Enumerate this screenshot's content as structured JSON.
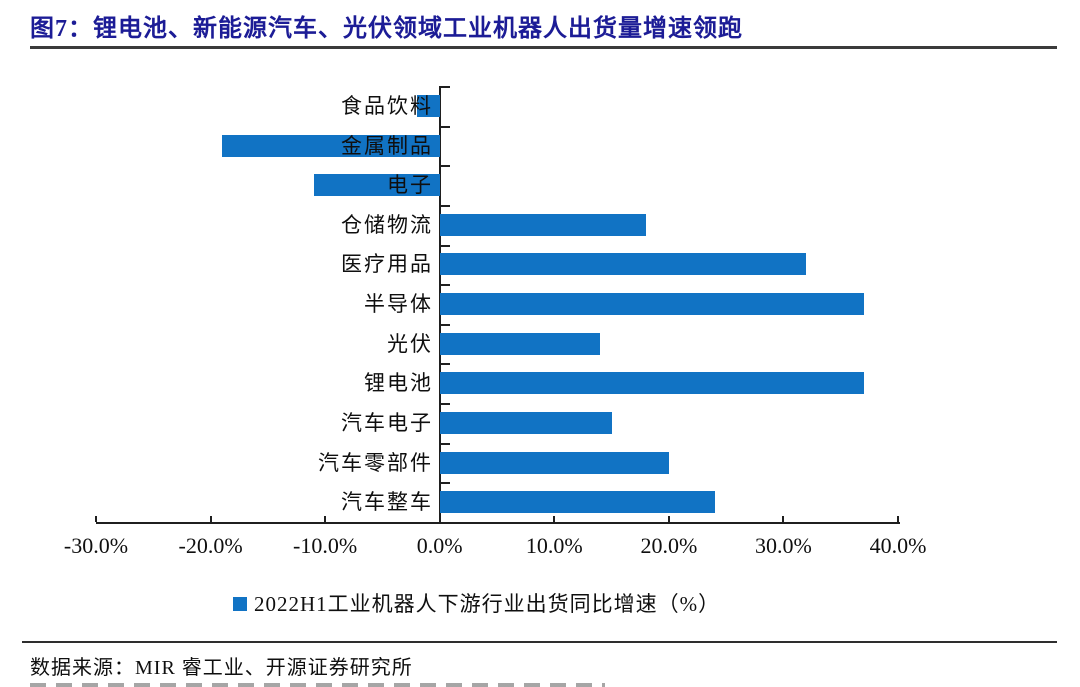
{
  "figure": {
    "title": "图7：锂电池、新能源汽车、光伏领域工业机器人出货量增速领跑",
    "source": "数据来源：MIR 睿工业、开源证券研究所"
  },
  "legend": {
    "label": "2022H1工业机器人下游行业出货同比增速（%）",
    "marker_color": "#1173c4"
  },
  "colors": {
    "title": "#1c1c96",
    "bar": "#1173c4",
    "axis": "#1f1f1f"
  },
  "chart_data": {
    "type": "bar",
    "orientation": "horizontal",
    "title": "图7：锂电池、新能源汽车、光伏领域工业机器人出货量增速领跑",
    "series_name": "2022H1工业机器人下游行业出货同比增速（%）",
    "unit": "%",
    "categories": [
      "食品饮料",
      "金属制品",
      "电子",
      "仓储物流",
      "医疗用品",
      "半导体",
      "光伏",
      "锂电池",
      "汽车电子",
      "汽车零部件",
      "汽车整车"
    ],
    "values": [
      -2,
      -19,
      -11,
      18,
      32,
      37,
      14,
      37,
      15,
      20,
      24
    ],
    "xlim": [
      -30,
      40
    ],
    "x_tick_values": [
      -30,
      -20,
      -10,
      0,
      10,
      20,
      30,
      40
    ],
    "x_tick_labels": [
      "-30.0%",
      "-20.0%",
      "-10.0%",
      "0.0%",
      "10.0%",
      "20.0%",
      "30.0%",
      "40.0%"
    ],
    "bar_color": "#1173c4",
    "grid": false,
    "legend_position": "bottom"
  }
}
